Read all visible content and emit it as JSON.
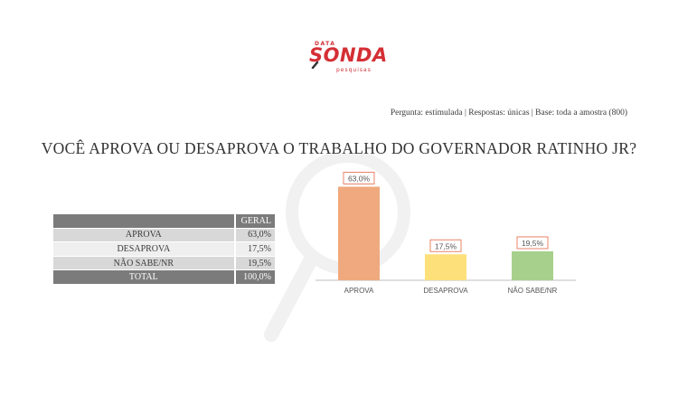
{
  "logo": {
    "top_text": "DATA",
    "main_text": "SONDA",
    "sub_text": "pesquisas"
  },
  "question_meta": "Pergunta: estimulada | Respostas: únicas | Base: toda a amostra (800)",
  "title": "VOCÊ APROVA OU DESAPROVA O TRABALHO DO GOVERNADOR RATINHO JR?",
  "table": {
    "header": "GERAL",
    "rows": [
      {
        "label": "APROVA",
        "value": "63,0%"
      },
      {
        "label": "DESAPROVA",
        "value": "17,5%"
      },
      {
        "label": "NÃO SABE/NR",
        "value": "19,5%"
      }
    ],
    "total": {
      "label": "TOTAL",
      "value": "100,0%"
    }
  },
  "chart_data": {
    "type": "bar",
    "categories": [
      "APROVA",
      "DESAPROVA",
      "NÃO SABE/NR"
    ],
    "values": [
      63.0,
      17.5,
      19.5
    ],
    "data_labels": [
      "63,0%",
      "17,5%",
      "19,5%"
    ],
    "colors": [
      "#f0a97e",
      "#fde07a",
      "#a7d08c"
    ],
    "label_border_color": "#e8836a",
    "ylim": [
      0,
      70
    ],
    "grid": false,
    "legend": "none"
  }
}
